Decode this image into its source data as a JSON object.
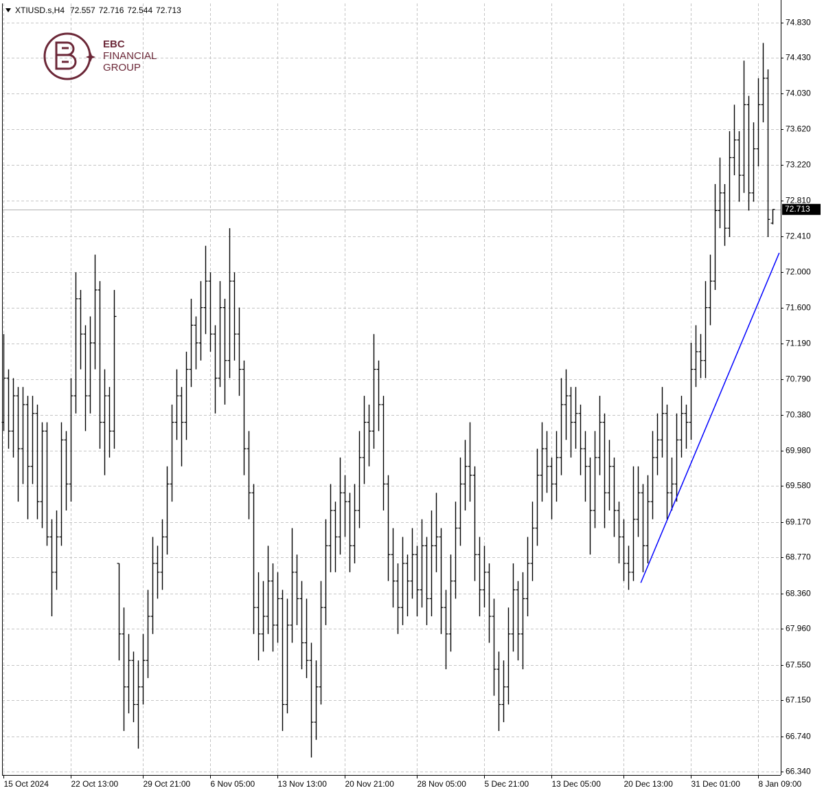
{
  "chart_data": {
    "type": "ohlc",
    "symbol": "XTIUSD.s,H4",
    "header_ohlc": [
      72.557,
      72.716,
      72.544,
      72.713
    ],
    "last_price": 72.713,
    "color": "#000000",
    "grid": true,
    "ylim": [
      66.301,
      75.048
    ],
    "yticks": [
      {
        "value": 74.83,
        "label": "74.830"
      },
      {
        "value": 74.43,
        "label": "74.430"
      },
      {
        "value": 74.03,
        "label": "74.030"
      },
      {
        "value": 73.62,
        "label": "73.620"
      },
      {
        "value": 73.22,
        "label": "73.220"
      },
      {
        "value": 72.81,
        "label": "72.810"
      },
      {
        "value": 72.41,
        "label": "72.410"
      },
      {
        "value": 72.0,
        "label": "72.000"
      },
      {
        "value": 71.6,
        "label": "71.600"
      },
      {
        "value": 71.19,
        "label": "71.190"
      },
      {
        "value": 70.79,
        "label": "70.790"
      },
      {
        "value": 70.38,
        "label": "70.380"
      },
      {
        "value": 69.98,
        "label": "69.980"
      },
      {
        "value": 69.58,
        "label": "69.580"
      },
      {
        "value": 69.17,
        "label": "69.170"
      },
      {
        "value": 68.77,
        "label": "68.770"
      },
      {
        "value": 68.36,
        "label": "68.360"
      },
      {
        "value": 67.96,
        "label": "67.960"
      },
      {
        "value": 67.55,
        "label": "67.550"
      },
      {
        "value": 67.15,
        "label": "67.150"
      },
      {
        "value": 66.74,
        "label": "66.740"
      },
      {
        "value": 66.34,
        "label": "66.340"
      }
    ],
    "categories": [
      "15 Oct 2024",
      null,
      null,
      null,
      null,
      null,
      null,
      null,
      null,
      null,
      null,
      null,
      null,
      null,
      "22 Oct 13:00",
      null,
      null,
      null,
      null,
      null,
      null,
      null,
      null,
      null,
      null,
      null,
      null,
      null,
      null,
      "29 Oct 21:00",
      null,
      null,
      null,
      null,
      null,
      null,
      null,
      null,
      null,
      null,
      null,
      null,
      null,
      "6 Nov 05:00",
      null,
      null,
      null,
      null,
      null,
      null,
      null,
      null,
      null,
      null,
      null,
      null,
      null,
      "13 Nov 13:00",
      null,
      null,
      null,
      null,
      null,
      null,
      null,
      null,
      null,
      null,
      null,
      null,
      null,
      "20 Nov 21:00",
      null,
      null,
      null,
      null,
      null,
      null,
      null,
      null,
      null,
      null,
      null,
      null,
      null,
      null,
      "28 Nov 05:00",
      null,
      null,
      null,
      null,
      null,
      null,
      null,
      null,
      null,
      null,
      null,
      null,
      null,
      "5 Dec 21:00",
      null,
      null,
      null,
      null,
      null,
      null,
      null,
      null,
      null,
      null,
      null,
      null,
      null,
      "13 Dec 05:00",
      null,
      null,
      null,
      null,
      null,
      null,
      null,
      null,
      null,
      null,
      null,
      null,
      null,
      null,
      "20 Dec 13:00",
      null,
      null,
      null,
      null,
      null,
      null,
      null,
      null,
      null,
      null,
      null,
      null,
      null,
      "31 Dec 01:00",
      null,
      null,
      null,
      null,
      null,
      null,
      null,
      null,
      null,
      null,
      null,
      null,
      null,
      "8 Jan 09:00",
      null,
      null,
      null
    ],
    "ohlc": [
      [
        70.3,
        71.3,
        70.2,
        70.8
      ],
      [
        70.8,
        70.9,
        70.0,
        70.2
      ],
      [
        70.2,
        70.8,
        69.9,
        70.6
      ],
      [
        70.6,
        70.7,
        69.4,
        70.0
      ],
      [
        70.0,
        70.7,
        69.6,
        70.5
      ],
      [
        70.5,
        70.6,
        69.2,
        69.8
      ],
      [
        69.8,
        70.6,
        69.6,
        70.4
      ],
      [
        70.4,
        70.5,
        69.2,
        69.4
      ],
      [
        69.4,
        70.3,
        69.1,
        70.2
      ],
      [
        70.2,
        70.3,
        68.9,
        69.0
      ],
      [
        69.0,
        69.2,
        68.1,
        68.6
      ],
      [
        68.6,
        69.3,
        68.4,
        69.0
      ],
      [
        69.0,
        70.3,
        68.9,
        70.1
      ],
      [
        70.1,
        70.2,
        69.3,
        69.6
      ],
      [
        69.6,
        70.8,
        69.4,
        70.6
      ],
      [
        70.6,
        72.0,
        70.4,
        71.7
      ],
      [
        71.7,
        71.8,
        70.9,
        71.3
      ],
      [
        71.3,
        71.4,
        70.2,
        70.6
      ],
      [
        70.6,
        71.5,
        70.4,
        71.2
      ],
      [
        71.2,
        72.2,
        70.9,
        71.8
      ],
      [
        71.8,
        71.9,
        70.0,
        70.3
      ],
      [
        70.3,
        70.9,
        69.7,
        70.6
      ],
      [
        70.6,
        70.7,
        69.9,
        70.2
      ],
      [
        70.2,
        71.8,
        70.0,
        71.5
      ],
      [
        68.7,
        68.7,
        67.6,
        67.9
      ],
      [
        67.9,
        68.2,
        66.8,
        67.3
      ],
      [
        67.3,
        67.9,
        67.0,
        67.6
      ],
      [
        67.6,
        67.7,
        66.9,
        67.1
      ],
      [
        67.1,
        67.6,
        66.6,
        67.3
      ],
      [
        67.3,
        67.9,
        67.1,
        67.6
      ],
      [
        67.6,
        68.4,
        67.4,
        68.1
      ],
      [
        68.1,
        69.0,
        67.9,
        68.7
      ],
      [
        68.7,
        68.9,
        68.3,
        68.6
      ],
      [
        68.6,
        69.2,
        68.4,
        69.0
      ],
      [
        69.0,
        69.8,
        68.8,
        69.6
      ],
      [
        69.6,
        70.5,
        69.4,
        70.3
      ],
      [
        70.3,
        70.9,
        70.1,
        70.6
      ],
      [
        70.6,
        70.7,
        69.8,
        70.3
      ],
      [
        70.3,
        71.1,
        70.1,
        70.9
      ],
      [
        70.9,
        71.7,
        70.7,
        71.4
      ],
      [
        71.4,
        71.5,
        70.9,
        71.2
      ],
      [
        71.2,
        71.9,
        71.0,
        71.6
      ],
      [
        71.6,
        72.3,
        71.3,
        71.9
      ],
      [
        71.9,
        72.0,
        71.1,
        71.3
      ],
      [
        71.3,
        71.4,
        70.4,
        70.8
      ],
      [
        70.8,
        71.9,
        70.7,
        71.6
      ],
      [
        71.6,
        71.7,
        70.5,
        71.0
      ],
      [
        71.0,
        72.5,
        70.8,
        71.9
      ],
      [
        71.9,
        72.0,
        71.0,
        71.3
      ],
      [
        71.3,
        71.6,
        70.6,
        70.9
      ],
      [
        70.9,
        71.0,
        69.7,
        70.0
      ],
      [
        70.0,
        70.2,
        69.2,
        69.5
      ],
      [
        69.5,
        69.6,
        67.9,
        68.2
      ],
      [
        68.2,
        68.6,
        67.6,
        67.9
      ],
      [
        67.9,
        68.5,
        67.7,
        68.1
      ],
      [
        68.1,
        68.9,
        67.9,
        68.5
      ],
      [
        68.5,
        68.7,
        67.7,
        68.0
      ],
      [
        68.0,
        68.6,
        67.8,
        68.3
      ],
      [
        68.3,
        68.4,
        66.8,
        67.1
      ],
      [
        67.1,
        68.3,
        67.0,
        68.0
      ],
      [
        68.0,
        69.1,
        67.8,
        68.6
      ],
      [
        68.6,
        68.8,
        68.0,
        68.3
      ],
      [
        68.3,
        68.5,
        67.5,
        67.8
      ],
      [
        67.8,
        68.3,
        67.4,
        67.6
      ],
      [
        67.6,
        67.8,
        66.5,
        66.9
      ],
      [
        66.9,
        67.6,
        66.7,
        67.3
      ],
      [
        67.3,
        68.5,
        67.1,
        68.2
      ],
      [
        68.2,
        69.2,
        68.0,
        68.9
      ],
      [
        68.9,
        69.6,
        68.6,
        69.3
      ],
      [
        69.3,
        69.4,
        68.6,
        69.0
      ],
      [
        69.0,
        69.9,
        68.8,
        69.5
      ],
      [
        69.5,
        69.7,
        69.0,
        69.4
      ],
      [
        69.4,
        69.5,
        68.6,
        68.9
      ],
      [
        68.9,
        69.6,
        68.7,
        69.3
      ],
      [
        69.3,
        70.2,
        69.1,
        69.9
      ],
      [
        69.9,
        70.6,
        69.6,
        70.3
      ],
      [
        70.3,
        70.5,
        69.8,
        70.2
      ],
      [
        70.2,
        71.3,
        70.0,
        70.9
      ],
      [
        70.9,
        71.0,
        70.2,
        70.5
      ],
      [
        70.5,
        70.6,
        69.3,
        69.6
      ],
      [
        69.6,
        69.7,
        68.5,
        68.8
      ],
      [
        68.8,
        69.1,
        68.2,
        68.5
      ],
      [
        68.5,
        68.7,
        67.9,
        68.2
      ],
      [
        68.2,
        69.0,
        68.0,
        68.7
      ],
      [
        68.7,
        68.8,
        68.1,
        68.5
      ],
      [
        68.5,
        69.1,
        68.3,
        68.8
      ],
      [
        68.8,
        68.9,
        68.1,
        68.4
      ],
      [
        68.4,
        69.2,
        68.2,
        68.9
      ],
      [
        68.9,
        69.0,
        68.0,
        68.3
      ],
      [
        68.3,
        69.3,
        68.1,
        68.9
      ],
      [
        68.9,
        69.5,
        68.6,
        69.0
      ],
      [
        69.0,
        69.1,
        67.9,
        68.2
      ],
      [
        68.2,
        68.4,
        67.5,
        67.9
      ],
      [
        67.9,
        68.8,
        67.7,
        68.5
      ],
      [
        68.5,
        69.4,
        68.3,
        69.1
      ],
      [
        69.1,
        69.9,
        68.9,
        69.6
      ],
      [
        69.6,
        70.1,
        69.3,
        69.8
      ],
      [
        69.8,
        70.3,
        69.4,
        69.7
      ],
      [
        69.7,
        69.8,
        68.5,
        68.8
      ],
      [
        68.8,
        69.0,
        68.1,
        68.4
      ],
      [
        68.4,
        68.9,
        68.2,
        68.6
      ],
      [
        68.6,
        68.7,
        67.8,
        68.1
      ],
      [
        68.1,
        68.3,
        67.2,
        67.5
      ],
      [
        67.5,
        67.7,
        66.8,
        67.1
      ],
      [
        67.1,
        67.6,
        66.9,
        67.3
      ],
      [
        67.3,
        68.2,
        67.1,
        67.9
      ],
      [
        67.9,
        68.7,
        67.7,
        68.4
      ],
      [
        68.4,
        68.5,
        67.6,
        67.9
      ],
      [
        67.9,
        68.6,
        67.5,
        68.3
      ],
      [
        68.3,
        69.0,
        68.1,
        68.7
      ],
      [
        68.7,
        69.4,
        68.5,
        69.1
      ],
      [
        69.1,
        70.0,
        68.9,
        69.7
      ],
      [
        69.7,
        70.3,
        69.4,
        70.0
      ],
      [
        70.0,
        70.2,
        69.5,
        69.8
      ],
      [
        69.8,
        69.9,
        69.2,
        69.6
      ],
      [
        69.6,
        70.2,
        69.4,
        69.9
      ],
      [
        69.9,
        70.8,
        69.7,
        70.5
      ],
      [
        70.5,
        70.9,
        70.1,
        70.6
      ],
      [
        70.6,
        70.7,
        69.9,
        70.3
      ],
      [
        70.3,
        70.7,
        70.0,
        70.4
      ],
      [
        70.4,
        70.5,
        69.7,
        70.0
      ],
      [
        70.0,
        70.2,
        69.4,
        69.8
      ],
      [
        69.8,
        69.9,
        68.8,
        69.3
      ],
      [
        69.3,
        70.2,
        69.1,
        69.9
      ],
      [
        69.9,
        70.6,
        69.7,
        70.3
      ],
      [
        70.3,
        70.4,
        69.1,
        69.5
      ],
      [
        69.5,
        70.1,
        69.3,
        69.8
      ],
      [
        69.8,
        69.9,
        69.0,
        69.3
      ],
      [
        69.3,
        69.4,
        68.7,
        69.0
      ],
      [
        69.0,
        69.2,
        68.5,
        68.7
      ],
      [
        68.7,
        68.9,
        68.4,
        68.6
      ],
      [
        68.6,
        69.8,
        68.5,
        69.2
      ],
      [
        69.2,
        69.8,
        69.0,
        69.5
      ],
      [
        69.5,
        69.6,
        68.6,
        68.9
      ],
      [
        68.9,
        69.7,
        68.7,
        69.4
      ],
      [
        69.4,
        70.2,
        69.2,
        69.9
      ],
      [
        69.9,
        70.4,
        69.7,
        70.1
      ],
      [
        70.1,
        70.7,
        69.9,
        70.4
      ],
      [
        70.4,
        70.5,
        69.2,
        69.5
      ],
      [
        69.5,
        69.9,
        69.3,
        69.6
      ],
      [
        69.6,
        70.4,
        69.4,
        70.1
      ],
      [
        70.1,
        70.6,
        69.9,
        70.4
      ],
      [
        70.4,
        70.5,
        70.0,
        70.3
      ],
      [
        70.3,
        71.2,
        70.1,
        70.9
      ],
      [
        70.9,
        71.4,
        70.7,
        71.1
      ],
      [
        71.1,
        71.3,
        70.8,
        71.0
      ],
      [
        71.0,
        71.9,
        70.8,
        71.6
      ],
      [
        71.6,
        72.2,
        71.4,
        71.9
      ],
      [
        71.9,
        73.0,
        71.8,
        72.7
      ],
      [
        72.7,
        73.3,
        72.5,
        72.9
      ],
      [
        72.9,
        73.0,
        72.3,
        72.5
      ],
      [
        72.5,
        73.6,
        72.4,
        73.3
      ],
      [
        73.3,
        73.9,
        73.1,
        73.5
      ],
      [
        73.5,
        73.6,
        72.8,
        73.1
      ],
      [
        73.1,
        74.4,
        72.9,
        73.9
      ],
      [
        73.9,
        74.0,
        72.7,
        72.9
      ],
      [
        72.9,
        73.7,
        72.8,
        73.4
      ],
      [
        73.4,
        74.2,
        73.2,
        73.9
      ],
      [
        73.9,
        74.6,
        73.7,
        74.2
      ],
      [
        74.2,
        74.3,
        72.4,
        72.6
      ],
      [
        72.557,
        72.716,
        72.544,
        72.713
      ]
    ],
    "trendline": {
      "color": "#0000ff",
      "points": [
        [
          132.6,
          68.48
        ],
        [
          161.4,
          72.22
        ]
      ]
    }
  },
  "logo": {
    "lines": [
      "EBC",
      "FINANCIAL",
      "GROUP"
    ],
    "color": "#6b2737"
  }
}
